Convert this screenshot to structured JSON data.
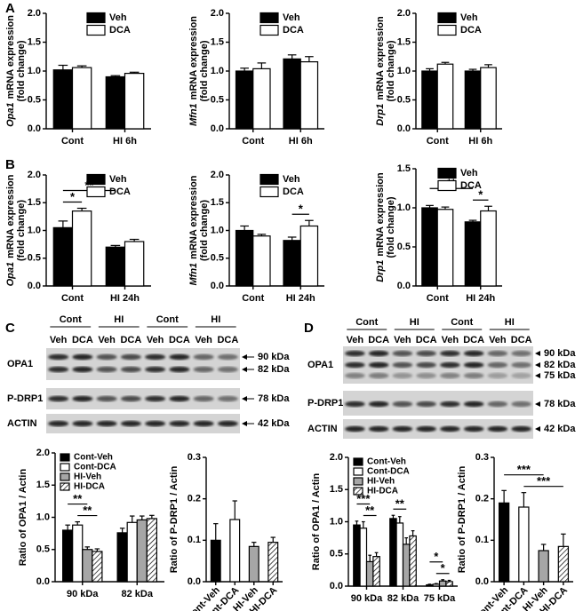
{
  "panels": [
    "A",
    "B",
    "C",
    "D"
  ],
  "blots": [
    {
      "groups": [
        "Cont",
        "HI",
        "Cont",
        "HI"
      ],
      "lanes": [
        "Veh",
        "DCA",
        "Veh",
        "DCA",
        "Veh",
        "DCA",
        "Veh",
        "DCA"
      ],
      "rows": [
        {
          "name": "OPA1",
          "markers": [
            "90 kDa",
            "82 kDa"
          ]
        },
        {
          "name": "P-DRP1",
          "markers": [
            "78 kDa"
          ]
        },
        {
          "name": "ACTIN",
          "markers": [
            "42 kDa"
          ]
        }
      ]
    },
    {
      "groups": [
        "Cont",
        "HI",
        "Cont",
        "HI"
      ],
      "lanes": [
        "Veh",
        "DCA",
        "Veh",
        "DCA",
        "Veh",
        "DCA",
        "Veh",
        "DCA"
      ],
      "rows": [
        {
          "name": "OPA1",
          "markers": [
            "90 kDa",
            "82 kDa",
            "75 kDa"
          ]
        },
        {
          "name": "P-DRP1",
          "markers": [
            "78 kDa"
          ]
        },
        {
          "name": "ACTIN",
          "markers": [
            "42 kDa"
          ]
        }
      ]
    }
  ],
  "chart_data": [
    {
      "type": "bar",
      "ylabel": {
        "gene": "Opa1",
        "text": "mRNA expression"
      },
      "ylabel2": "(fold change)",
      "categories": [
        "Cont",
        "HI 6h"
      ],
      "series": [
        {
          "name": "Veh",
          "color": "#000000",
          "values": [
            1.02,
            0.9
          ],
          "errors": [
            0.08,
            0.02
          ]
        },
        {
          "name": "DCA",
          "color": "#ffffff",
          "values": [
            1.06,
            0.96
          ],
          "errors": [
            0.03,
            0.02
          ]
        }
      ],
      "ylim": [
        0,
        2
      ],
      "yticks": [
        {
          "value": 0,
          "label": "0.0"
        },
        {
          "value": 0.5,
          "label": "0.5"
        },
        {
          "value": 1,
          "label": "1.0"
        },
        {
          "value": 1.5,
          "label": "1.5"
        },
        {
          "value": 2,
          "label": "2.0"
        }
      ],
      "legend": "upper right",
      "annotations": []
    },
    {
      "type": "bar",
      "ylabel": {
        "gene": "Mfn1",
        "text": "mRNA expression"
      },
      "ylabel2": "(fold change)",
      "categories": [
        "Cont",
        "HI 6h"
      ],
      "series": [
        {
          "name": "Veh",
          "color": "#000000",
          "values": [
            1.0,
            1.21
          ],
          "errors": [
            0.05,
            0.07
          ]
        },
        {
          "name": "DCA",
          "color": "#ffffff",
          "values": [
            1.04,
            1.16
          ],
          "errors": [
            0.1,
            0.09
          ]
        }
      ],
      "ylim": [
        0,
        2
      ],
      "yticks": [
        {
          "value": 0,
          "label": "0.0"
        },
        {
          "value": 0.5,
          "label": "0.5"
        },
        {
          "value": 1,
          "label": "1.0"
        },
        {
          "value": 1.5,
          "label": "1.5"
        },
        {
          "value": 2,
          "label": "2.0"
        }
      ],
      "legend": "upper right",
      "annotations": []
    },
    {
      "type": "bar",
      "ylabel": {
        "gene": "Drp1",
        "text": "mRNA expression"
      },
      "ylabel2": "(fold change)",
      "categories": [
        "Cont",
        "HI 6h"
      ],
      "series": [
        {
          "name": "Veh",
          "color": "#000000",
          "values": [
            1.0,
            1.0
          ],
          "errors": [
            0.04,
            0.03
          ]
        },
        {
          "name": "DCA",
          "color": "#ffffff",
          "values": [
            1.12,
            1.06
          ],
          "errors": [
            0.03,
            0.05
          ]
        }
      ],
      "ylim": [
        0,
        2
      ],
      "yticks": [
        {
          "value": 0,
          "label": "0.0"
        },
        {
          "value": 0.5,
          "label": "0.5"
        },
        {
          "value": 1,
          "label": "1.0"
        },
        {
          "value": 1.5,
          "label": "1.5"
        },
        {
          "value": 2,
          "label": "2.0"
        }
      ],
      "legend": "upper right",
      "annotations": []
    },
    {
      "type": "bar",
      "ylabel": {
        "gene": "Opa1",
        "text": "mRNA expression"
      },
      "ylabel2": "(fold change)",
      "categories": [
        "Cont",
        "HI 24h"
      ],
      "series": [
        {
          "name": "Veh",
          "color": "#000000",
          "values": [
            1.05,
            0.7
          ],
          "errors": [
            0.12,
            0.03
          ]
        },
        {
          "name": "DCA",
          "color": "#ffffff",
          "values": [
            1.35,
            0.8
          ],
          "errors": [
            0.05,
            0.04
          ]
        }
      ],
      "ylim": [
        0,
        2
      ],
      "yticks": [
        {
          "value": 0,
          "label": "0.0"
        },
        {
          "value": 0.5,
          "label": "0.5"
        },
        {
          "value": 1,
          "label": "1.0"
        },
        {
          "value": 1.5,
          "label": "1.5"
        },
        {
          "value": 2,
          "label": "2.0"
        }
      ],
      "legend": "upper right",
      "annotations": [
        {
          "text": "*",
          "bars": [
            [
              0,
              0
            ],
            [
              0,
              1
            ]
          ]
        },
        {
          "text": "**",
          "bars": [
            [
              0,
              0
            ],
            [
              1,
              0
            ]
          ]
        }
      ]
    },
    {
      "type": "bar",
      "ylabel": {
        "gene": "Mfn1",
        "text": "mRNA expression"
      },
      "ylabel2": "(fold change)",
      "categories": [
        "Cont",
        "HI 24h"
      ],
      "series": [
        {
          "name": "Veh",
          "color": "#000000",
          "values": [
            1.0,
            0.82
          ],
          "errors": [
            0.08,
            0.06
          ]
        },
        {
          "name": "DCA",
          "color": "#ffffff",
          "values": [
            0.9,
            1.08
          ],
          "errors": [
            0.03,
            0.1
          ]
        }
      ],
      "ylim": [
        0,
        2
      ],
      "yticks": [
        {
          "value": 0,
          "label": "0.0"
        },
        {
          "value": 0.5,
          "label": "0.5"
        },
        {
          "value": 1,
          "label": "1.0"
        },
        {
          "value": 1.5,
          "label": "1.5"
        },
        {
          "value": 2,
          "label": "2.0"
        }
      ],
      "legend": "upper right",
      "annotations": [
        {
          "text": "*",
          "bars": [
            [
              1,
              0
            ],
            [
              1,
              1
            ]
          ]
        }
      ]
    },
    {
      "type": "bar",
      "ylabel": {
        "gene": "Drp1",
        "text": "mRNA expression"
      },
      "ylabel2": "(fold change)",
      "categories": [
        "Cont",
        "HI 24h"
      ],
      "series": [
        {
          "name": "Veh",
          "color": "#000000",
          "values": [
            1.0,
            0.82
          ],
          "errors": [
            0.03,
            0.02
          ]
        },
        {
          "name": "DCA",
          "color": "#ffffff",
          "values": [
            0.98,
            0.96
          ],
          "errors": [
            0.03,
            0.06
          ]
        }
      ],
      "ylim": [
        0,
        1.5
      ],
      "yticks": [
        {
          "value": 0,
          "label": "0.0"
        },
        {
          "value": 0.5,
          "label": "0.5"
        },
        {
          "value": 1,
          "label": "1.0"
        },
        {
          "value": 1.5,
          "label": "1.5"
        }
      ],
      "legend": "upper right",
      "annotations": [
        {
          "text": "*",
          "bars": [
            [
              1,
              0
            ],
            [
              1,
              1
            ]
          ]
        },
        {
          "text": "**",
          "bars": [
            [
              0,
              0
            ],
            [
              1,
              0
            ]
          ]
        }
      ]
    },
    {
      "type": "bar",
      "ylabel": "Ratio of OPA1 / Actin",
      "categories": [
        "90 kDa",
        "82 kDa"
      ],
      "series": [
        {
          "name": "Cont-Veh",
          "color": "#000000",
          "values": [
            0.8,
            0.76
          ],
          "errors": [
            0.08,
            0.07
          ]
        },
        {
          "name": "Cont-DCA",
          "color": "#ffffff",
          "values": [
            0.88,
            0.92
          ],
          "errors": [
            0.05,
            0.1
          ]
        },
        {
          "name": "HI-Veh",
          "color": "#a6a6a6",
          "values": [
            0.5,
            0.96
          ],
          "errors": [
            0.04,
            0.06
          ]
        },
        {
          "name": "HI-DCA",
          "color": "hatch",
          "values": [
            0.47,
            0.98
          ],
          "errors": [
            0.04,
            0.05
          ]
        }
      ],
      "ylim": [
        0,
        2
      ],
      "yticks": [
        {
          "value": 0,
          "label": "0.0"
        },
        {
          "value": 0.5,
          "label": "0.5"
        },
        {
          "value": 1,
          "label": "1.0"
        },
        {
          "value": 1.5,
          "label": "1.5"
        },
        {
          "value": 2,
          "label": "2.0"
        }
      ],
      "legend": "upper left",
      "annotations": [
        {
          "text": "**",
          "bars": [
            [
              0,
              1
            ],
            [
              0,
              3
            ]
          ]
        },
        {
          "text": "**",
          "bars": [
            [
              0,
              0
            ],
            [
              0,
              2
            ]
          ]
        }
      ]
    },
    {
      "type": "bar",
      "ylabel": "Ratio of P-DRP1 / Actin",
      "categories": [
        "Cont-Veh",
        "Cont-DCA",
        "HI-Veh",
        "HI-DCA"
      ],
      "rotate_xticks": true,
      "series": [
        {
          "colors": [
            "#000000",
            "#ffffff",
            "#a6a6a6",
            "hatch"
          ],
          "values": [
            0.1,
            0.15,
            0.085,
            0.095
          ],
          "errors": [
            0.04,
            0.045,
            0.01,
            0.012
          ]
        }
      ],
      "ylim": [
        0,
        0.3
      ],
      "yticks": [
        {
          "value": 0,
          "label": "0.0"
        },
        {
          "value": 0.1,
          "label": "0.1"
        },
        {
          "value": 0.2,
          "label": "0.2"
        },
        {
          "value": 0.3,
          "label": "0.3"
        }
      ],
      "annotations": []
    },
    {
      "type": "bar",
      "ylabel": "Ratio of OPA1 / Actin",
      "categories": [
        "90 kDa",
        "82 kDa",
        "75 kDa"
      ],
      "series": [
        {
          "name": "Cont-Veh",
          "color": "#000000",
          "values": [
            0.95,
            1.05,
            0.02
          ],
          "errors": [
            0.06,
            0.05,
            0.01
          ]
        },
        {
          "name": "Cont-DCA",
          "color": "#ffffff",
          "values": [
            0.9,
            0.98,
            0.03
          ],
          "errors": [
            0.1,
            0.1,
            0.01
          ]
        },
        {
          "name": "HI-Veh",
          "color": "#a6a6a6",
          "values": [
            0.38,
            0.65,
            0.08
          ],
          "errors": [
            0.1,
            0.1,
            0.02
          ]
        },
        {
          "name": "HI-DCA",
          "color": "hatch",
          "values": [
            0.46,
            0.78,
            0.07
          ],
          "errors": [
            0.06,
            0.08,
            0.02
          ]
        }
      ],
      "ylim": [
        0,
        2
      ],
      "yticks": [
        {
          "value": 0,
          "label": "0.0"
        },
        {
          "value": 0.5,
          "label": "0.5"
        },
        {
          "value": 1,
          "label": "1.0"
        },
        {
          "value": 1.5,
          "label": "1.5"
        },
        {
          "value": 2,
          "label": "2.0"
        }
      ],
      "legend": "upper left",
      "annotations": [
        {
          "text": "**",
          "bars": [
            [
              0,
              1
            ],
            [
              0,
              3
            ]
          ]
        },
        {
          "text": "***",
          "bars": [
            [
              0,
              0
            ],
            [
              0,
              2
            ]
          ]
        },
        {
          "text": "**",
          "bars": [
            [
              1,
              0
            ],
            [
              1,
              2
            ]
          ]
        },
        {
          "text": "*",
          "bars": [
            [
              2,
              1
            ],
            [
              2,
              3
            ]
          ]
        },
        {
          "text": "*",
          "bars": [
            [
              2,
              0
            ],
            [
              2,
              2
            ]
          ]
        }
      ]
    },
    {
      "type": "bar",
      "ylabel": "Ratio of P-DRP1 / Actin",
      "categories": [
        "Cont-Veh",
        "Cont-DCA",
        "HI-Veh",
        "HI-DCA"
      ],
      "rotate_xticks": true,
      "series": [
        {
          "colors": [
            "#000000",
            "#ffffff",
            "#a6a6a6",
            "hatch"
          ],
          "values": [
            0.19,
            0.18,
            0.075,
            0.085
          ],
          "errors": [
            0.03,
            0.035,
            0.015,
            0.03
          ]
        }
      ],
      "ylim": [
        0,
        0.3
      ],
      "yticks": [
        {
          "value": 0,
          "label": "0.0"
        },
        {
          "value": 0.1,
          "label": "0.1"
        },
        {
          "value": 0.2,
          "label": "0.2"
        },
        {
          "value": 0.3,
          "label": "0.3"
        }
      ],
      "annotations": [
        {
          "text": "***",
          "bars": [
            [
              1,
              0
            ],
            [
              3,
              0
            ]
          ]
        },
        {
          "text": "***",
          "bars": [
            [
              0,
              0
            ],
            [
              2,
              0
            ]
          ]
        }
      ]
    }
  ]
}
